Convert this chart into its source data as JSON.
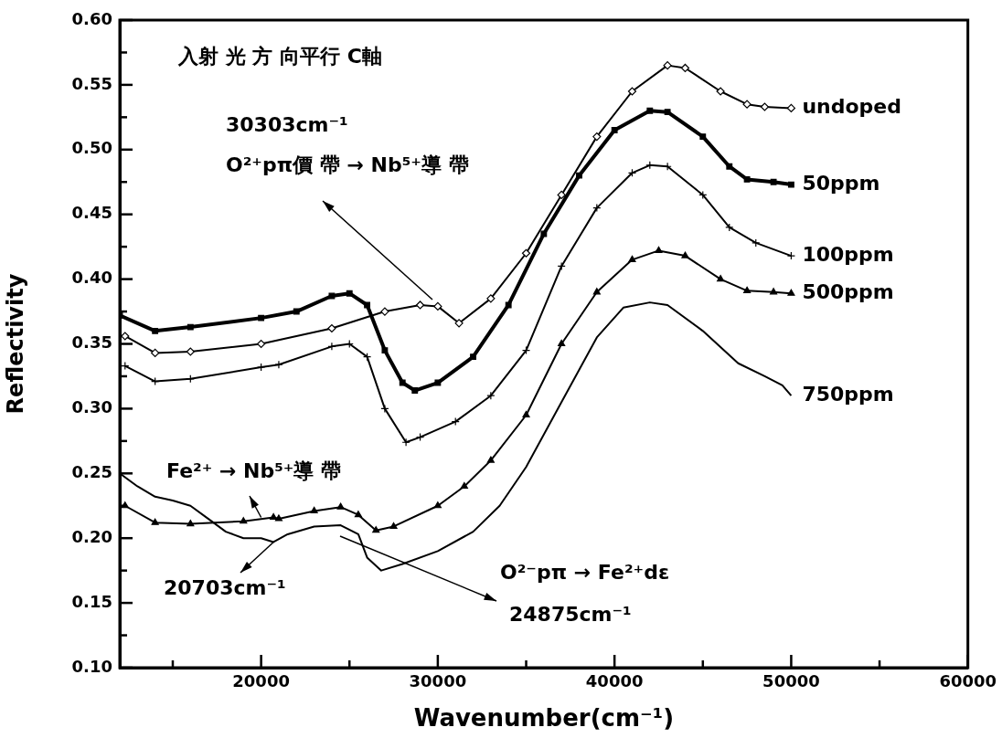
{
  "chart_data": {
    "type": "line",
    "xlabel": "Wavenumber(cm⁻¹)",
    "ylabel": "Reflectivity",
    "xlim": [
      12000,
      60000
    ],
    "xticks": [
      {
        "value": 15000,
        "label": null
      },
      20000,
      {
        "value": 25000,
        "label": null
      },
      30000,
      {
        "value": 35000,
        "label": null
      },
      40000,
      {
        "value": 45000,
        "label": null
      },
      50000,
      {
        "value": 55000,
        "label": null
      },
      60000
    ],
    "ylim": [
      0.1,
      0.6
    ],
    "yticks": [
      {
        "value": 0.1,
        "label": "0.10"
      },
      {
        "value": 0.125,
        "label": null
      },
      0.15,
      {
        "value": 0.175,
        "label": null
      },
      {
        "value": 0.2,
        "label": "0.20"
      },
      {
        "value": 0.225,
        "label": null
      },
      0.25,
      {
        "value": 0.275,
        "label": null
      },
      {
        "value": 0.3,
        "label": "0.30"
      },
      {
        "value": 0.325,
        "label": null
      },
      0.35,
      {
        "value": 0.375,
        "label": null
      },
      {
        "value": 0.4,
        "label": "0.40"
      },
      {
        "value": 0.425,
        "label": null
      },
      0.45,
      {
        "value": 0.475,
        "label": null
      },
      {
        "value": 0.5,
        "label": "0.50"
      },
      {
        "value": 0.525,
        "label": null
      },
      0.55,
      {
        "value": 0.575,
        "label": null
      },
      {
        "value": 0.6,
        "label": "0.60"
      }
    ],
    "grid": false,
    "legend": false,
    "series": [
      {
        "name": "undoped",
        "color": "#000000",
        "marker": "diamond",
        "x": [
          12300,
          14000,
          16000,
          20000,
          24000,
          27000,
          29000,
          30000,
          31200,
          33000,
          35000,
          37000,
          39000,
          41000,
          43000,
          44000,
          46000,
          47500,
          48500,
          50000
        ],
        "values": [
          0.356,
          0.343,
          0.344,
          0.35,
          0.362,
          0.375,
          0.38,
          0.379,
          0.366,
          0.385,
          0.42,
          0.465,
          0.51,
          0.545,
          0.565,
          0.563,
          0.545,
          0.535,
          0.533,
          0.532
        ]
      },
      {
        "name": "50ppm",
        "color": "#000000",
        "marker": "square",
        "x": [
          12000,
          14000,
          16000,
          20000,
          22000,
          24000,
          25000,
          26000,
          27000,
          28000,
          28700,
          30000,
          32000,
          34000,
          36000,
          38000,
          40000,
          42000,
          43000,
          45000,
          46500,
          47500,
          49000,
          50000
        ],
        "values": [
          0.372,
          0.36,
          0.363,
          0.37,
          0.375,
          0.387,
          0.389,
          0.38,
          0.345,
          0.32,
          0.314,
          0.32,
          0.34,
          0.38,
          0.435,
          0.48,
          0.515,
          0.53,
          0.529,
          0.51,
          0.487,
          0.477,
          0.475,
          0.473
        ]
      },
      {
        "name": "100ppm",
        "color": "#000000",
        "marker": "cross",
        "x": [
          12300,
          14000,
          16000,
          20000,
          21000,
          24000,
          25000,
          26000,
          27000,
          28200,
          29000,
          31000,
          33000,
          35000,
          37000,
          39000,
          41000,
          42000,
          43000,
          45000,
          46500,
          48000,
          50000
        ],
        "values": [
          0.333,
          0.321,
          0.323,
          0.332,
          0.334,
          0.348,
          0.35,
          0.34,
          0.3,
          0.274,
          0.278,
          0.29,
          0.31,
          0.345,
          0.41,
          0.455,
          0.482,
          0.488,
          0.487,
          0.465,
          0.44,
          0.428,
          0.418
        ]
      },
      {
        "name": "500ppm",
        "color": "#000000",
        "marker": "triangle",
        "x": [
          12300,
          14000,
          16000,
          19000,
          20700,
          21000,
          23000,
          24500,
          25500,
          26500,
          27500,
          30000,
          31500,
          33000,
          35000,
          37000,
          39000,
          41000,
          42500,
          44000,
          46000,
          47500,
          49000,
          50000
        ],
        "values": [
          0.225,
          0.212,
          0.211,
          0.213,
          0.216,
          0.215,
          0.221,
          0.224,
          0.218,
          0.206,
          0.209,
          0.225,
          0.24,
          0.26,
          0.295,
          0.35,
          0.39,
          0.415,
          0.422,
          0.418,
          0.4,
          0.391,
          0.39,
          0.389
        ]
      },
      {
        "name": "750ppm",
        "color": "#000000",
        "marker": "none",
        "x": [
          12000,
          13000,
          14000,
          15000,
          16000,
          17000,
          18000,
          19000,
          20000,
          20700,
          21500,
          23000,
          24500,
          25500,
          26000,
          26800,
          28000,
          30000,
          32000,
          33500,
          35000,
          37000,
          39000,
          40500,
          42000,
          43000,
          45000,
          47000,
          48500,
          49500,
          50000
        ],
        "values": [
          0.25,
          0.24,
          0.232,
          0.229,
          0.225,
          0.215,
          0.205,
          0.2,
          0.2,
          0.197,
          0.203,
          0.209,
          0.21,
          0.203,
          0.185,
          0.175,
          0.18,
          0.19,
          0.205,
          0.225,
          0.255,
          0.305,
          0.355,
          0.378,
          0.382,
          0.38,
          0.36,
          0.335,
          0.325,
          0.318,
          0.31
        ]
      }
    ],
    "annotations": [
      "入射 光 方 向平行 C軸",
      "30303cm⁻¹",
      "O²⁺pπ價 帶 → Nb⁵⁺導 帶",
      {
        "text": "Fe²⁺ → Nb⁵⁺導 帶",
        "x": 20000,
        "y": 0.216
      },
      {
        "text": "20703cm⁻¹",
        "x": 20703,
        "y": 0.197
      },
      "O²⁻pπ → Fe²⁺dε",
      "24875cm⁻¹"
    ]
  }
}
